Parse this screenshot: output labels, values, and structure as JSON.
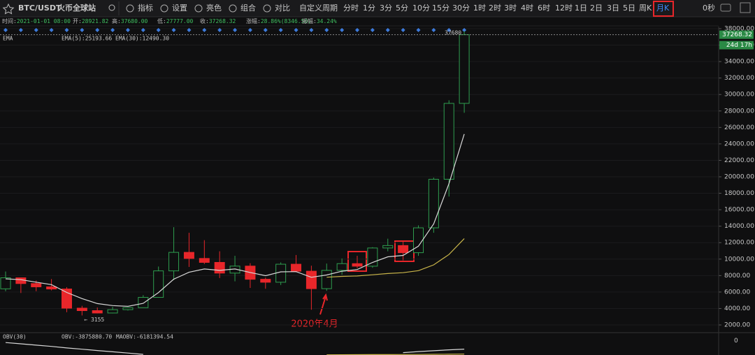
{
  "toolbar": {
    "symbol": "BTC/USDT",
    "exchange": "火币全球站",
    "menu": [
      "指标",
      "设置",
      "亮色",
      "组合",
      "对比"
    ],
    "custom_period": "自定义周期",
    "periods": [
      "分时",
      "1分",
      "3分",
      "5分",
      "10分",
      "15分",
      "30分",
      "1时",
      "2时",
      "3时",
      "4时",
      "6时",
      "12时",
      "1日",
      "2日",
      "3日",
      "5日",
      "周K",
      "月K"
    ],
    "active_period": 18,
    "countdown": "0秒"
  },
  "info": [
    {
      "label": "时间:",
      "value": "2021-01-01 08:00"
    },
    {
      "label": "开:",
      "value": "28921.82"
    },
    {
      "label": "高:",
      "value": "37680.00"
    },
    {
      "label": "低:",
      "value": "27777.00"
    },
    {
      "label": "收:",
      "value": "37268.32"
    },
    {
      "label": "涨幅:",
      "value": "28.86%(8346.50)"
    },
    {
      "label": "振幅:",
      "value": "34.24%"
    }
  ],
  "chart_data": {
    "type": "candlestick",
    "indicator": "EMA",
    "open": [
      6390,
      7730,
      7030,
      6630,
      6370,
      4040,
      3740,
      3450,
      3860,
      4100,
      5350,
      8570,
      10820,
      10080,
      9600,
      8300,
      9150,
      7550,
      7190,
      9380,
      8530,
      6410,
      8630,
      9450,
      9140,
      11350,
      11650,
      10780,
      13800,
      19700,
      28921.82
    ],
    "high": [
      8500,
      7760,
      7400,
      7580,
      6590,
      4320,
      4120,
      4200,
      4150,
      5620,
      9100,
      13880,
      13200,
      12300,
      10950,
      10400,
      9500,
      7750,
      9600,
      10500,
      9200,
      9460,
      10080,
      10400,
      11450,
      12480,
      12100,
      14100,
      19900,
      29300,
      37680
    ],
    "low": [
      6100,
      5880,
      6100,
      6200,
      3550,
      3155,
      3400,
      3400,
      3750,
      4100,
      5350,
      7450,
      9050,
      9400,
      7700,
      7300,
      6500,
      6400,
      6850,
      8400,
      3850,
      6150,
      8100,
      8900,
      8950,
      10950,
      9850,
      10400,
      13200,
      17600,
      27777
    ],
    "close": [
      7730,
      7030,
      6630,
      6370,
      4040,
      3740,
      3450,
      3860,
      4100,
      5350,
      8570,
      10820,
      10080,
      9600,
      8300,
      9150,
      7550,
      7190,
      9380,
      8530,
      6410,
      8630,
      9450,
      9140,
      11350,
      11650,
      10780,
      13800,
      19700,
      28920,
      37268.32
    ],
    "up_color": "#2e9e4f",
    "down_color": "#e8262a",
    "ylim": [
      1151,
      37745
    ],
    "yticks": [
      {
        "value": 2000,
        "label": "2000.00"
      },
      {
        "value": 4000,
        "label": "4000.00"
      },
      {
        "value": 6000,
        "label": "6000.00"
      },
      {
        "value": 8000,
        "label": "8000.00"
      },
      {
        "value": 10000,
        "label": "10000.00"
      },
      {
        "value": 12000,
        "label": "12000.00"
      },
      {
        "value": 14000,
        "label": "14000.00"
      },
      {
        "value": 16000,
        "label": "16000.00"
      },
      {
        "value": 18000,
        "label": "18000.00"
      },
      {
        "value": 20000,
        "label": "20000.00"
      },
      {
        "value": 22000,
        "label": "22000.00"
      },
      {
        "value": 24000,
        "label": "24000.00"
      },
      {
        "value": 26000,
        "label": "26000.00"
      },
      {
        "value": 28000,
        "label": "28000.00"
      },
      {
        "value": 30000,
        "label": "30000.00"
      },
      {
        "value": 32000,
        "label": "32000.00"
      },
      {
        "value": 34000,
        "label": "34000.00"
      },
      {
        "value": 36000,
        "label": "36000.00"
      },
      {
        "value": 38000,
        "label": "38000.00"
      }
    ],
    "series": [
      {
        "label": "EMA(5):25193.66",
        "color": "#d8d8d8",
        "values": [
          7600,
          7500,
          7200,
          6900,
          5950,
          5200,
          4600,
          4350,
          4260,
          4620,
          5940,
          7570,
          8400,
          8800,
          8630,
          8800,
          8380,
          7990,
          8450,
          8480,
          7790,
          8070,
          8530,
          8730,
          9600,
          10280,
          10450,
          11570,
          14280,
          19160,
          25193.66
        ]
      },
      {
        "label": "EMA(30):12490.30",
        "color": "#c9b54a",
        "values": [
          null,
          null,
          null,
          null,
          null,
          null,
          null,
          null,
          null,
          null,
          null,
          null,
          null,
          null,
          null,
          null,
          null,
          null,
          null,
          null,
          null,
          7800,
          7900,
          7950,
          8100,
          8250,
          8350,
          8600,
          9300,
          10560,
          12490.3
        ]
      }
    ],
    "last_price": {
      "value": 37268.32,
      "label": "37268.32"
    },
    "countdown": "24d 17h",
    "high_marker": "37680",
    "low_marker": "← 3155",
    "annotation": "2020年4月",
    "obv": {
      "label": "OBV(30)",
      "ylim": [
        -6600000,
        3500000
      ],
      "yticks": [
        0
      ],
      "series": [
        {
          "label": "OBV:-3875880.70",
          "color": "#d8d8d8",
          "values": [
            -800000,
            -1400000,
            -2000000,
            -2600000,
            -3300000,
            -3900000,
            -4500000,
            -5100000,
            -5700000,
            -6300000,
            null,
            null,
            null,
            null,
            null,
            null,
            null,
            null,
            null,
            null,
            null,
            null,
            null,
            null,
            null,
            null,
            -5500000,
            -5000000,
            -4600000,
            -4200000,
            -3875880.7
          ]
        },
        {
          "label": "MAOBV:-6181394.54",
          "color": "#c9b54a",
          "values": [
            null,
            null,
            null,
            null,
            null,
            null,
            null,
            null,
            null,
            null,
            null,
            null,
            null,
            null,
            null,
            null,
            null,
            null,
            null,
            null,
            null,
            -6500000,
            -6480000,
            -6450000,
            -6420000,
            -6400000,
            -6370000,
            -6330000,
            -6290000,
            -6240000,
            -6181394.54
          ]
        }
      ]
    }
  }
}
